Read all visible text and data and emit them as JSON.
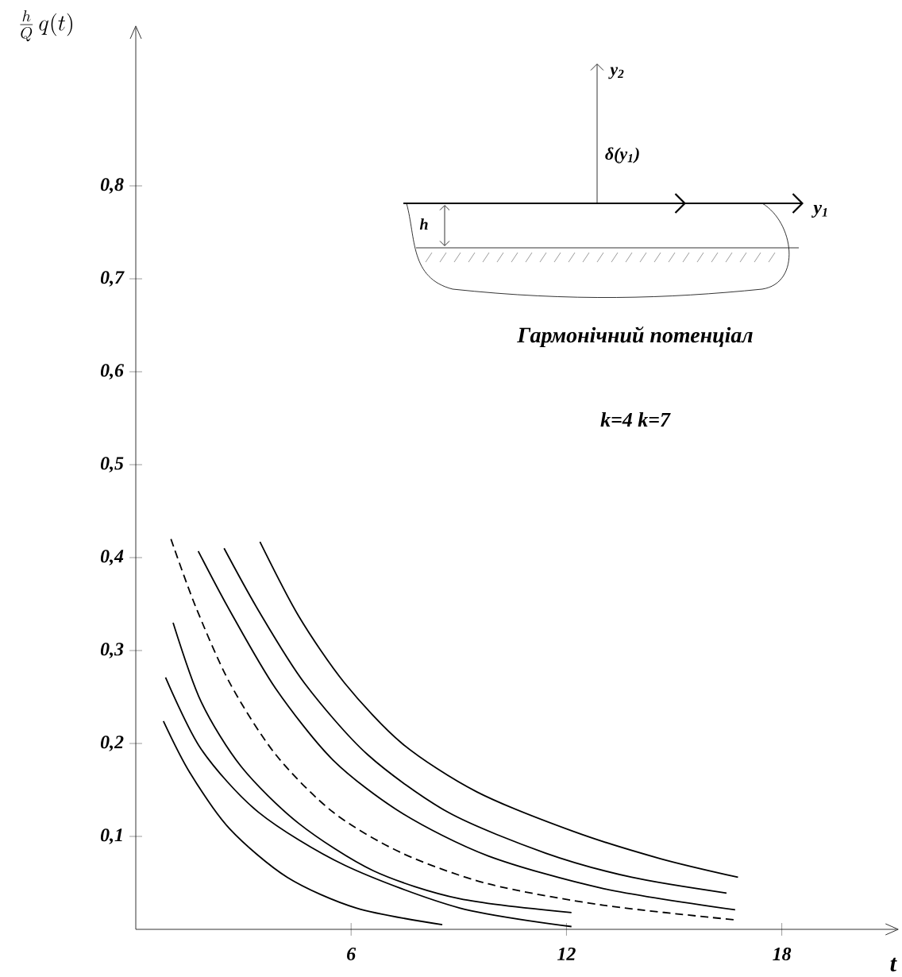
{
  "chart_data": {
    "type": "line",
    "xlabel": "t",
    "ylabel": "\\frac{h}{Q}\\,q(t)",
    "xlim": [
      0,
      21.2
    ],
    "ylim": [
      0,
      0.96
    ],
    "xticks": [
      6,
      12,
      18
    ],
    "yticks": [
      {
        "value": 0.1,
        "label": "0,1"
      },
      {
        "value": 0.2,
        "label": "0,2"
      },
      {
        "value": 0.3,
        "label": "0,3"
      },
      {
        "value": 0.4,
        "label": "0,4"
      },
      {
        "value": 0.5,
        "label": "0,5"
      },
      {
        "value": 0.6,
        "label": "0,6"
      },
      {
        "value": 0.7,
        "label": "0,7"
      },
      {
        "value": 0.8,
        "label": "0,8"
      }
    ],
    "grid": false,
    "marker": "none",
    "series": [
      {
        "color": "#000000",
        "line_style": "solid",
        "x": [
          0.77,
          1.5,
          2.62,
          4.22,
          6.14,
          8.54
        ],
        "values": [
          0.224,
          0.169,
          0.108,
          0.056,
          0.023,
          0.005
        ]
      },
      {
        "color": "#000000",
        "line_style": "solid",
        "x": [
          0.83,
          1.82,
          3.42,
          5.82,
          9.02,
          12.14
        ],
        "values": [
          0.271,
          0.194,
          0.126,
          0.069,
          0.023,
          0.003
        ]
      },
      {
        "color": "#000000",
        "line_style": "solid",
        "x": [
          1.04,
          1.82,
          2.94,
          4.54,
          6.62,
          9.02,
          12.14
        ],
        "values": [
          0.33,
          0.245,
          0.175,
          0.114,
          0.063,
          0.033,
          0.018
        ]
      },
      {
        "color": "#000000",
        "line_style": "dashed",
        "x": [
          0.98,
          1.66,
          2.62,
          3.9,
          5.5,
          7.42,
          9.82,
          13.02,
          16.75
        ],
        "values": [
          0.42,
          0.348,
          0.265,
          0.188,
          0.126,
          0.082,
          0.049,
          0.026,
          0.01
        ]
      },
      {
        "color": "#000000",
        "line_style": "solid",
        "x": [
          1.74,
          2.62,
          3.9,
          5.5,
          7.42,
          9.82,
          13.02,
          16.7
        ],
        "values": [
          0.407,
          0.343,
          0.259,
          0.182,
          0.125,
          0.079,
          0.044,
          0.021
        ]
      },
      {
        "color": "#000000",
        "line_style": "solid",
        "x": [
          2.46,
          3.42,
          4.7,
          6.46,
          8.7,
          11.42,
          13.82,
          16.46
        ],
        "values": [
          0.41,
          0.343,
          0.265,
          0.188,
          0.126,
          0.082,
          0.056,
          0.039
        ]
      },
      {
        "color": "#000000",
        "line_style": "solid",
        "x": [
          3.46,
          4.54,
          5.82,
          7.42,
          9.5,
          12.22,
          14.62,
          16.78
        ],
        "values": [
          0.417,
          0.337,
          0.265,
          0.2,
          0.148,
          0.105,
          0.076,
          0.056
        ]
      }
    ],
    "annotations": [
      "y$_{2}$",
      "δ(y$_{1}$)",
      "y$_{1}$",
      "h",
      "Гармонічний потенціал",
      "k=4   k=7"
    ]
  }
}
